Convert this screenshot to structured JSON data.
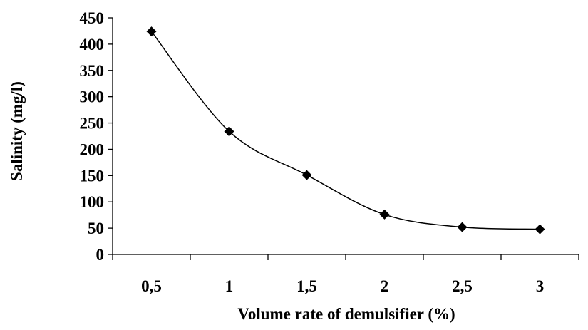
{
  "chart_data": {
    "type": "line",
    "title": "",
    "xlabel": "Volume rate of demulsifier (%)",
    "ylabel": "Salinity (mg/l)",
    "categories": [
      "0,5",
      "1",
      "1,5",
      "2",
      "2,5",
      "3"
    ],
    "series": [
      {
        "values": [
          424,
          234,
          151,
          76,
          52,
          48
        ],
        "marker": "diamond",
        "smooth": true,
        "color": "#000000"
      }
    ],
    "ylim": [
      0,
      450
    ],
    "yticks": [
      "0",
      "50",
      "100",
      "150",
      "200",
      "250",
      "300",
      "350",
      "400",
      "450"
    ],
    "grid": false,
    "legend": "none"
  }
}
